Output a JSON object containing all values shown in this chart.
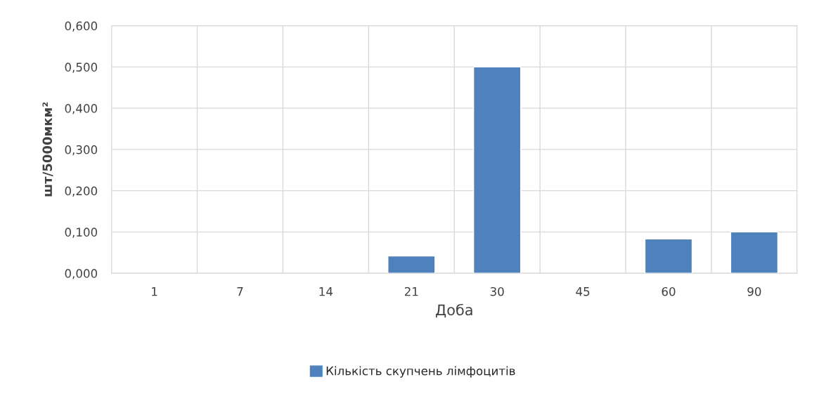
{
  "chart_data": {
    "type": "bar",
    "xlabel": "Доба",
    "ylabel": "шт/5000мкм²",
    "categories": [
      "1",
      "7",
      "14",
      "21",
      "30",
      "45",
      "60",
      "90"
    ],
    "series": [
      {
        "name": "Кількість скупчень лімфоцитів",
        "color": "#4f81bd",
        "values": [
          null,
          null,
          null,
          0.042,
          0.5,
          null,
          0.083,
          0.1
        ]
      }
    ],
    "ylim": [
      0,
      0.6
    ],
    "yticks": [
      {
        "value": 0,
        "label": "0,000"
      },
      {
        "value": 0.1,
        "label": "0,100"
      },
      {
        "value": 0.2,
        "label": "0,200"
      },
      {
        "value": 0.3,
        "label": "0,300"
      },
      {
        "value": 0.4,
        "label": "0,400"
      },
      {
        "value": 0.5,
        "label": "0,500"
      },
      {
        "value": 0.6,
        "label": "0,600"
      }
    ],
    "grid": true,
    "legend": "bottom"
  }
}
